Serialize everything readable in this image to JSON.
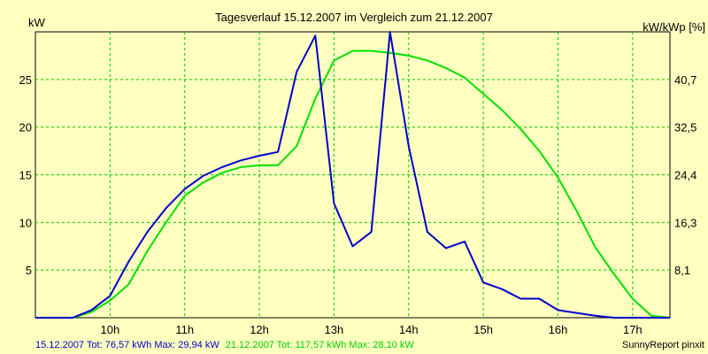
{
  "chart_data": {
    "type": "line",
    "title": "Tagesverlauf 15.12.2007 im Vergleich zum 21.12.2007",
    "ylabel_left": "kW",
    "ylabel_right": "kW/kWp [%]",
    "x_tick_labels": [
      "10h",
      "11h",
      "12h",
      "13h",
      "14h",
      "15h",
      "16h",
      "17h"
    ],
    "x_tick_hours": [
      10,
      11,
      12,
      13,
      14,
      15,
      16,
      17
    ],
    "xlim_hours": [
      9.0,
      17.5
    ],
    "ylim": [
      0,
      30
    ],
    "y_left_ticks": [
      5,
      10,
      15,
      20,
      25
    ],
    "y_right_ticks": [
      {
        "label": "8,1",
        "value": 5
      },
      {
        "label": "16,3",
        "value": 10
      },
      {
        "label": "24,4",
        "value": 15
      },
      {
        "label": "32,5",
        "value": 20
      },
      {
        "label": "40,7",
        "value": 25
      }
    ],
    "grid": true,
    "series": [
      {
        "name": "15.12.2007",
        "color": "#0000cc",
        "x": [
          9.0,
          9.25,
          9.5,
          9.75,
          10.0,
          10.25,
          10.5,
          10.75,
          11.0,
          11.25,
          11.5,
          11.75,
          12.0,
          12.25,
          12.5,
          12.75,
          13.0,
          13.25,
          13.5,
          13.75,
          14.0,
          14.25,
          14.5,
          14.75,
          15.0,
          15.25,
          15.5,
          15.75,
          16.0,
          16.25,
          16.5,
          16.75,
          17.0,
          17.25,
          17.5
        ],
        "values": [
          0,
          0,
          0,
          0.8,
          2.3,
          5.9,
          9.0,
          11.5,
          13.5,
          14.9,
          15.8,
          16.5,
          17.0,
          17.4,
          25.8,
          29.6,
          12.0,
          7.5,
          9.0,
          30.0,
          18.0,
          9.0,
          7.3,
          8.0,
          3.7,
          3.0,
          2.0,
          2.0,
          0.8,
          0.5,
          0.2,
          0,
          0,
          0,
          0
        ]
      },
      {
        "name": "21.12.2007",
        "color": "#00e000",
        "x": [
          9.0,
          9.25,
          9.5,
          9.75,
          10.0,
          10.25,
          10.5,
          10.75,
          11.0,
          11.25,
          11.5,
          11.75,
          12.0,
          12.25,
          12.5,
          12.75,
          13.0,
          13.25,
          13.5,
          13.75,
          14.0,
          14.25,
          14.5,
          14.75,
          15.0,
          15.25,
          15.5,
          15.75,
          16.0,
          16.25,
          16.5,
          16.75,
          17.0,
          17.25,
          17.5
        ],
        "values": [
          0,
          0,
          0,
          0.6,
          1.8,
          3.5,
          7.0,
          10.0,
          12.8,
          14.2,
          15.2,
          15.8,
          16.0,
          16.0,
          18.0,
          23.0,
          27.0,
          28.0,
          28.0,
          27.8,
          27.5,
          27.0,
          26.2,
          25.2,
          23.5,
          21.8,
          19.8,
          17.5,
          14.7,
          11.2,
          7.4,
          4.6,
          2.0,
          0.2,
          0
        ]
      }
    ]
  },
  "footer": {
    "s1_text": "15.12.2007 Tot: 76,57 kWh Max: 29,94 kW",
    "s2_text": "21.12.2007 Tot: 117,57 kWh Max: 28,10 kW",
    "credit": "SunnyReport pinxit"
  }
}
